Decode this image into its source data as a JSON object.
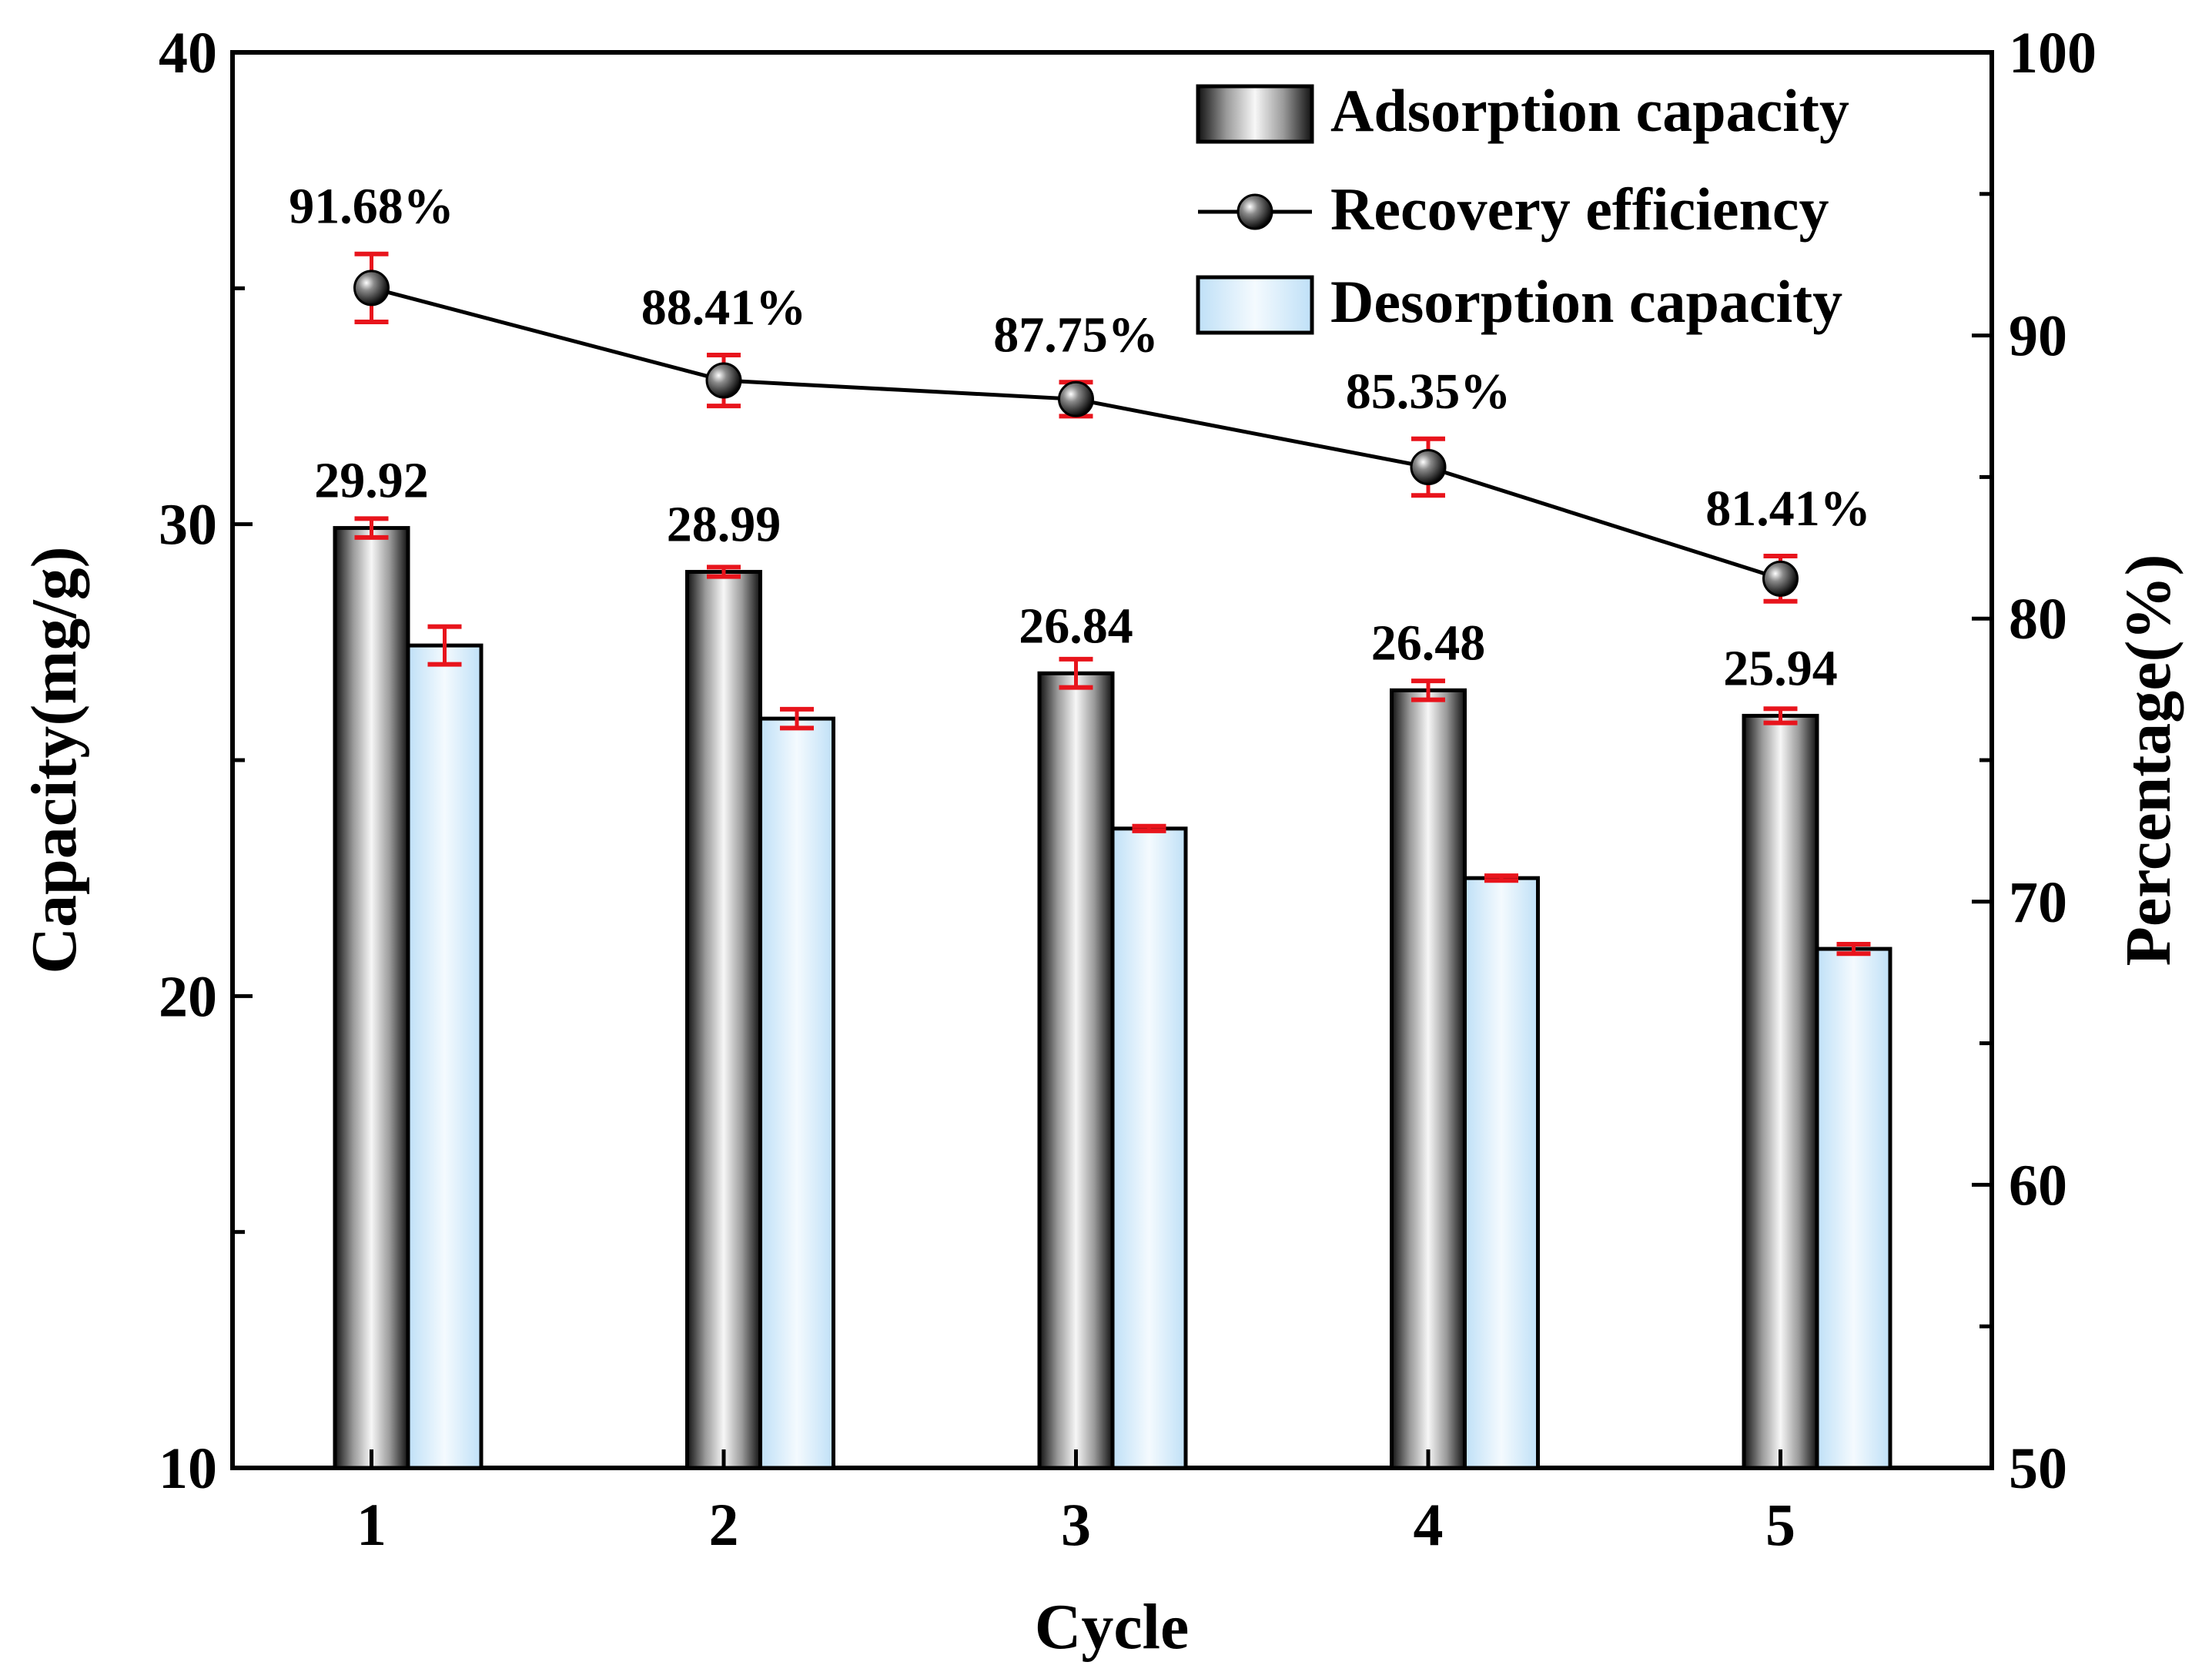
{
  "chart_data": {
    "type": "bar",
    "title": "",
    "xlabel": "Cycle",
    "ylabel": "Capacity(mg/g)",
    "y2label": "Percentage(%)",
    "categories": [
      "1",
      "2",
      "3",
      "4",
      "5"
    ],
    "ylim": [
      10,
      40
    ],
    "y2lim": [
      50,
      100
    ],
    "yticks": [
      "10",
      "20",
      "30",
      "40"
    ],
    "y2ticks": [
      "50",
      "60",
      "70",
      "80",
      "90",
      "100"
    ],
    "grid": false,
    "legend_position": "top-right",
    "series": [
      {
        "name": "Adsorption capacity",
        "kind": "bar",
        "axis": "left",
        "values": [
          29.92,
          28.99,
          26.84,
          26.48,
          25.94
        ],
        "errors": [
          0.2,
          0.1,
          0.3,
          0.2,
          0.15
        ],
        "labels": [
          "29.92",
          "28.99",
          "26.84",
          "26.48",
          "25.94"
        ]
      },
      {
        "name": "Desorption capacity",
        "kind": "bar",
        "axis": "left",
        "values": [
          27.43,
          25.88,
          23.55,
          22.5,
          21.0
        ],
        "errors": [
          0.4,
          0.2,
          0.05,
          0.05,
          0.1
        ]
      },
      {
        "name": "Recovery efficiency",
        "kind": "line",
        "axis": "right",
        "values": [
          91.68,
          88.41,
          87.75,
          85.35,
          81.41
        ],
        "errors": [
          1.2,
          0.9,
          0.6,
          1.0,
          0.8
        ],
        "labels": [
          "91.68%",
          "88.41%",
          "87.75%",
          "85.35%",
          "81.41%"
        ]
      }
    ],
    "colors": {
      "error_bar": "#e8141c",
      "desorption_fill": "#d8ecfb",
      "adsorption_dark": "#1a1a1a",
      "adsorption_light": "#f4f4f4"
    }
  }
}
